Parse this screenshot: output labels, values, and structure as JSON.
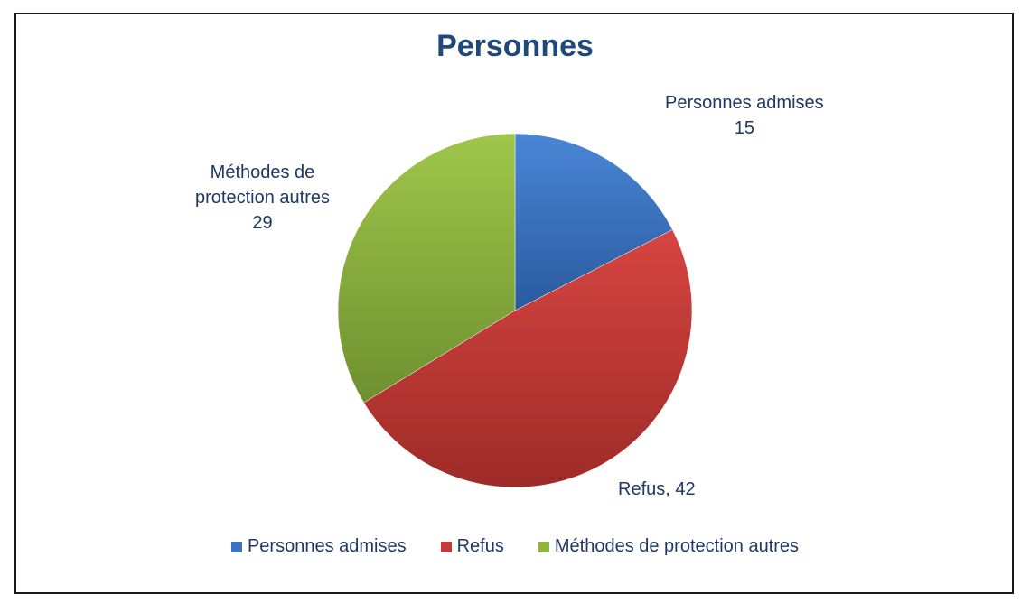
{
  "chart_data": {
    "type": "pie",
    "title": "Personnes",
    "categories": [
      "Personnes admises",
      "Refus",
      "Méthodes de protection autres"
    ],
    "values": [
      15,
      42,
      29
    ],
    "colors": [
      "#3a75c4",
      "#c43a38",
      "#8fb53f"
    ],
    "data_labels": [
      {
        "name_lines": [
          "Personnes admises"
        ],
        "value": "15"
      },
      {
        "text": "Refus, 42"
      },
      {
        "name_lines": [
          "Méthodes de",
          "protection autres"
        ],
        "value": "29"
      }
    ],
    "legend": {
      "position": "bottom",
      "entries": [
        "Personnes admises",
        "Refus",
        "Méthodes de protection autres"
      ]
    }
  }
}
